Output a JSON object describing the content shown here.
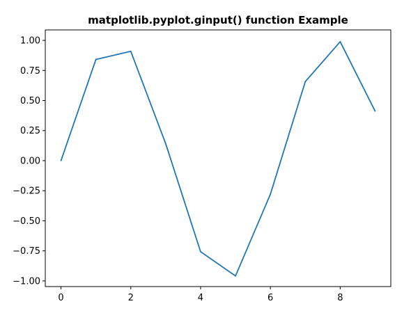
{
  "chart_data": {
    "type": "line",
    "title": "matplotlib.pyplot.ginput() function Example",
    "xlabel": "",
    "ylabel": "",
    "x": [
      0,
      1,
      2,
      3,
      4,
      5,
      6,
      7,
      8,
      9
    ],
    "series": [
      {
        "values": [
          0.0,
          0.841,
          0.909,
          0.141,
          -0.757,
          -0.959,
          -0.279,
          0.657,
          0.989,
          0.412
        ]
      }
    ],
    "xlim": [
      -0.45,
      9.45
    ],
    "ylim": [
      -1.047,
      1.087
    ],
    "xticks": [
      0,
      2,
      4,
      6,
      8
    ],
    "xtick_labels": [
      "0",
      "2",
      "4",
      "6",
      "8"
    ],
    "yticks": [
      1.0,
      0.75,
      0.5,
      0.25,
      0.0,
      -0.25,
      -0.5,
      -0.75,
      -1.0
    ],
    "ytick_labels": [
      "1.00",
      "0.75",
      "0.50",
      "0.25",
      "0.00",
      "−0.25",
      "−0.50",
      "−0.75",
      "−1.00"
    ],
    "grid": false,
    "legend": false,
    "line_color": "#1f77b4"
  }
}
